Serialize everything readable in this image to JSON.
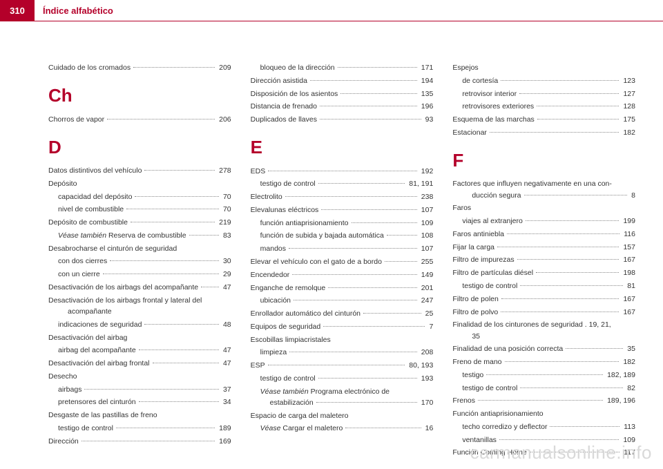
{
  "header": {
    "page_number": "310",
    "title": "Índice alfabético",
    "accent_color": "#b4002a"
  },
  "watermark": "carmanualsonline.info",
  "columns": [
    [
      {
        "t": "entry",
        "label": "Cuidado de los cromados",
        "page": "209"
      },
      {
        "t": "letter",
        "label": "Ch"
      },
      {
        "t": "entry",
        "label": "Chorros de vapor",
        "page": "206"
      },
      {
        "t": "letter",
        "label": "D"
      },
      {
        "t": "entry",
        "label": "Datos distintivos del vehículo",
        "page": "278"
      },
      {
        "t": "group",
        "label": "Depósito"
      },
      {
        "t": "sub",
        "label": "capacidad del depósito",
        "page": "70"
      },
      {
        "t": "sub",
        "label": "nivel de combustible",
        "page": "70"
      },
      {
        "t": "entry",
        "label": "Depósito de combustible",
        "page": "219"
      },
      {
        "t": "sub",
        "label_html": "<em class='see'>Véase también</em> Reserva de combustible",
        "page": "83"
      },
      {
        "t": "group",
        "label": "Desabrocharse el cinturón de seguridad"
      },
      {
        "t": "sub",
        "label": "con dos cierres",
        "page": "30"
      },
      {
        "t": "sub",
        "label": "con un cierre",
        "page": "29"
      },
      {
        "t": "entry",
        "label": "Desactivación de los airbags del acompañante",
        "page": "47"
      },
      {
        "t": "multiline",
        "line1": "Desactivación de los airbags frontal y lateral del",
        "line2": "acompañante"
      },
      {
        "t": "sub",
        "label": "indicaciones de seguridad",
        "page": "48"
      },
      {
        "t": "group",
        "label": "Desactivación del airbag"
      },
      {
        "t": "sub",
        "label": "airbag del acompañante",
        "page": "47"
      },
      {
        "t": "entry",
        "label": "Desactivación del airbag frontal",
        "page": "47"
      },
      {
        "t": "group",
        "label": "Desecho"
      },
      {
        "t": "sub",
        "label": "airbags",
        "page": "37"
      },
      {
        "t": "sub",
        "label": "pretensores del cinturón",
        "page": "34"
      },
      {
        "t": "group",
        "label": "Desgaste de las pastillas de freno"
      },
      {
        "t": "sub",
        "label": "testigo de control",
        "page": "189"
      },
      {
        "t": "entry",
        "label": "Dirección",
        "page": "169"
      },
      {
        "t": "sub",
        "label": "bloqueo de la dirección",
        "page": "171"
      }
    ],
    [
      {
        "t": "entry",
        "label": "Dirección asistida",
        "page": "194"
      },
      {
        "t": "entry",
        "label": "Disposición de los asientos",
        "page": "135"
      },
      {
        "t": "entry",
        "label": "Distancia de frenado",
        "page": "196"
      },
      {
        "t": "entry",
        "label": "Duplicados de llaves",
        "page": "93"
      },
      {
        "t": "letter",
        "label": "E"
      },
      {
        "t": "entry",
        "label": "EDS",
        "page": "192"
      },
      {
        "t": "sub",
        "label": "testigo de control",
        "page": "81, 191"
      },
      {
        "t": "entry",
        "label": "Electrolito",
        "page": "238"
      },
      {
        "t": "entry",
        "label": "Elevalunas eléctricos",
        "page": "107"
      },
      {
        "t": "sub",
        "label": "función antiaprisionamiento",
        "page": "109"
      },
      {
        "t": "sub",
        "label": "función de subida y bajada automática",
        "page": "108"
      },
      {
        "t": "sub",
        "label": "mandos",
        "page": "107"
      },
      {
        "t": "entry",
        "label": "Elevar el vehículo con el gato de a bordo",
        "page": "255"
      },
      {
        "t": "entry",
        "label": "Encendedor",
        "page": "149"
      },
      {
        "t": "entry",
        "label": "Enganche de remolque",
        "page": "201"
      },
      {
        "t": "sub",
        "label": "ubicación",
        "page": "247"
      },
      {
        "t": "entry",
        "label": "Enrollador automático del cinturón",
        "page": "25"
      },
      {
        "t": "entry",
        "label": "Equipos de seguridad",
        "page": "7"
      },
      {
        "t": "group",
        "label": "Escobillas limpiacristales"
      },
      {
        "t": "sub",
        "label": "limpieza",
        "page": "208"
      },
      {
        "t": "entry",
        "label": "ESP",
        "page": "80, 193"
      },
      {
        "t": "sub",
        "label": "testigo de control",
        "page": "193"
      },
      {
        "t": "multiline_sub",
        "line1_html": "<em class='see'>Véase también</em> Programa electrónico de",
        "line2": "estabilización",
        "page": "170"
      },
      {
        "t": "group",
        "label": "Espacio de carga del maletero"
      },
      {
        "t": "sub",
        "label_html": "<em class='see'>Véase</em> Cargar el maletero",
        "page": "16"
      }
    ],
    [
      {
        "t": "group",
        "label": "Espejos"
      },
      {
        "t": "sub",
        "label": "de cortesía",
        "page": "123"
      },
      {
        "t": "sub",
        "label": "retrovisor interior",
        "page": "127"
      },
      {
        "t": "sub",
        "label": "retrovisores exteriores",
        "page": "128"
      },
      {
        "t": "entry",
        "label": "Esquema de las marchas",
        "page": "175"
      },
      {
        "t": "entry",
        "label": "Estacionar",
        "page": "182"
      },
      {
        "t": "letter",
        "label": "F"
      },
      {
        "t": "multiline",
        "line1": "Factores que influyen negativamente en una con-",
        "line2": "ducción segura",
        "page": "8"
      },
      {
        "t": "group",
        "label": "Faros"
      },
      {
        "t": "sub",
        "label": "viajes al extranjero",
        "page": "199"
      },
      {
        "t": "entry",
        "label": "Faros antiniebla",
        "page": "116"
      },
      {
        "t": "entry",
        "label": "Fijar la carga",
        "page": "157"
      },
      {
        "t": "entry",
        "label": "Filtro de impurezas",
        "page": "167"
      },
      {
        "t": "entry",
        "label": "Filtro de partículas diésel",
        "page": "198"
      },
      {
        "t": "sub",
        "label": "testigo de control",
        "page": "81"
      },
      {
        "t": "entry",
        "label": "Filtro de polen",
        "page": "167"
      },
      {
        "t": "entry",
        "label": "Filtro de polvo",
        "page": "167"
      },
      {
        "t": "multiline",
        "line1": "Finalidad de los cinturones de seguridad .  19, 21,",
        "line2": "35"
      },
      {
        "t": "entry",
        "label": "Finalidad de una posición correcta",
        "page": "35"
      },
      {
        "t": "entry",
        "label": "Freno de mano",
        "page": "182"
      },
      {
        "t": "sub",
        "label": "testigo",
        "page": "182, 189"
      },
      {
        "t": "sub",
        "label": "testigo de control",
        "page": "82"
      },
      {
        "t": "entry",
        "label": "Frenos",
        "page": "189, 196"
      },
      {
        "t": "group",
        "label": "Función antiaprisionamiento"
      },
      {
        "t": "sub",
        "label": "techo corredizo y deflector",
        "page": "113"
      },
      {
        "t": "sub",
        "label": "ventanillas",
        "page": "109"
      },
      {
        "t": "entry",
        "label": "Función Coming Home",
        "page": "117"
      }
    ]
  ]
}
